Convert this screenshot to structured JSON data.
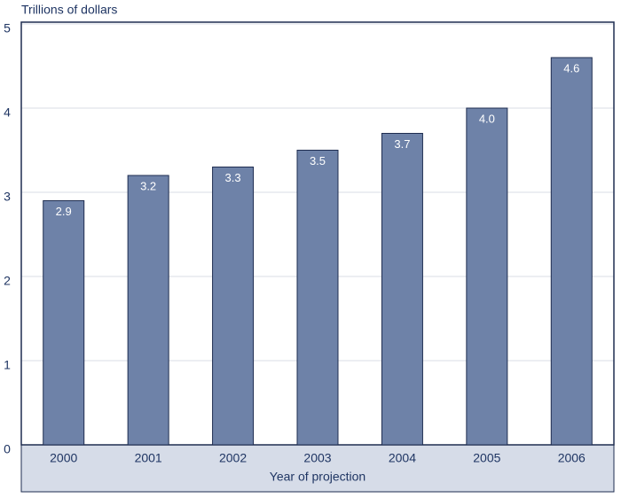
{
  "chart_data": {
    "type": "bar",
    "y_label": "Trillions of dollars",
    "x_label": "Year of projection",
    "categories": [
      "2000",
      "2001",
      "2002",
      "2003",
      "2004",
      "2005",
      "2006"
    ],
    "values": [
      2.9,
      3.2,
      3.3,
      3.5,
      3.7,
      4.0,
      4.6
    ],
    "value_labels": [
      "2.9",
      "3.2",
      "3.3",
      "3.5",
      "3.7",
      "4.0",
      "4.6"
    ],
    "color": "#6e82a8",
    "ylim": [
      0,
      5
    ],
    "yticks": [
      0,
      1,
      2,
      3,
      4,
      5
    ],
    "grid": true
  }
}
